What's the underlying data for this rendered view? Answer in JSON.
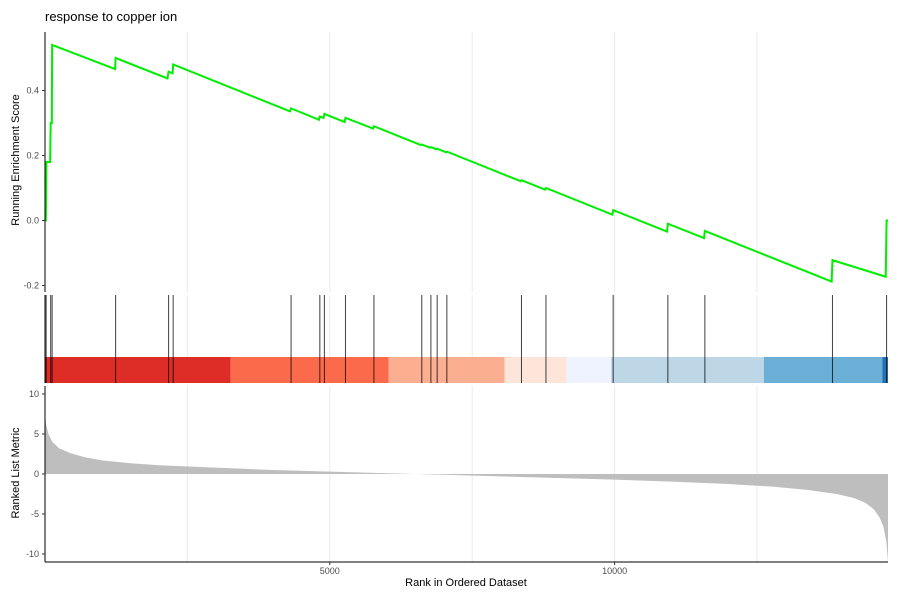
{
  "chart_data": {
    "type": "line",
    "title": "response to copper ion",
    "xlabel": "Rank in Ordered Dataset",
    "xlim": [
      0,
      14800
    ],
    "x_ticks": [
      5000,
      10000
    ],
    "grid": "vertical gridlines only, every 2500 ranks",
    "running_score": {
      "ylabel": "Running Enrichment Score",
      "ylim": [
        -0.22,
        0.58
      ],
      "y_ticks": [
        -0.2,
        0.0,
        0.2,
        0.4
      ],
      "y_tick_labels": [
        "-0.2",
        "0.0",
        "0.2",
        "0.4"
      ],
      "color": "#00ee00",
      "x": [
        0,
        15,
        25,
        90,
        100,
        120,
        125,
        1230,
        1240,
        2150,
        2170,
        2240,
        2250,
        4300,
        4320,
        4810,
        4825,
        4890,
        4905,
        5260,
        5275,
        5760,
        5775,
        6600,
        6615,
        6760,
        6775,
        6870,
        6885,
        7040,
        7055,
        8350,
        8365,
        8780,
        8795,
        9960,
        9975,
        10920,
        10935,
        11570,
        11585,
        13810,
        13825,
        14760,
        14775,
        14800
      ],
      "y": [
        0.0,
        0.0,
        0.18,
        0.18,
        0.3,
        0.3,
        0.54,
        0.466,
        0.5,
        0.437,
        0.458,
        0.453,
        0.48,
        0.336,
        0.345,
        0.31,
        0.32,
        0.316,
        0.328,
        0.303,
        0.316,
        0.283,
        0.29,
        0.232,
        0.234,
        0.224,
        0.226,
        0.219,
        0.221,
        0.21,
        0.212,
        0.121,
        0.124,
        0.095,
        0.1,
        0.018,
        0.032,
        -0.034,
        -0.01,
        -0.054,
        -0.032,
        -0.188,
        -0.122,
        -0.173,
        0.0,
        0.0
      ]
    },
    "hits": [
      20,
      100,
      125,
      1240,
      2170,
      2250,
      4320,
      4825,
      4905,
      5275,
      5775,
      6615,
      6775,
      6885,
      7055,
      8365,
      8795,
      9975,
      10935,
      11585,
      13825,
      14775
    ],
    "rank_color_bands": [
      {
        "start": 0,
        "end": 3260,
        "color": "#de2d26"
      },
      {
        "start": 3260,
        "end": 6030,
        "color": "#fb6a4a"
      },
      {
        "start": 6030,
        "end": 8070,
        "color": "#fcae91"
      },
      {
        "start": 8070,
        "end": 9160,
        "color": "#fee5d9"
      },
      {
        "start": 9160,
        "end": 9940,
        "color": "#eff3ff"
      },
      {
        "start": 9940,
        "end": 12620,
        "color": "#bdd7e7"
      },
      {
        "start": 12620,
        "end": 14700,
        "color": "#6baed6"
      },
      {
        "start": 14700,
        "end": 14800,
        "color": "#2171b5"
      }
    ],
    "ranked_list_metric": {
      "ylabel": "Ranked List Metric",
      "ylim": [
        -11,
        11
      ],
      "y_ticks": [
        -10,
        -5,
        0,
        5,
        10
      ],
      "y_tick_labels": [
        "-10",
        "-5",
        "0",
        "5",
        "10"
      ],
      "fill_color": "#bebebe",
      "x": [
        0,
        20,
        60,
        130,
        250,
        450,
        700,
        1000,
        1500,
        2000,
        3000,
        4000,
        5000,
        6000,
        7000,
        8000,
        9000,
        10000,
        11000,
        12000,
        12800,
        13400,
        13900,
        14200,
        14400,
        14550,
        14650,
        14720,
        14770,
        14800
      ],
      "y": [
        7.5,
        6.2,
        5.0,
        4.0,
        3.2,
        2.6,
        2.1,
        1.7,
        1.35,
        1.1,
        0.8,
        0.5,
        0.3,
        0.1,
        -0.1,
        -0.3,
        -0.5,
        -0.7,
        -0.95,
        -1.25,
        -1.6,
        -2.0,
        -2.5,
        -3.0,
        -3.6,
        -4.4,
        -5.4,
        -6.6,
        -8.4,
        -11.0
      ]
    }
  }
}
